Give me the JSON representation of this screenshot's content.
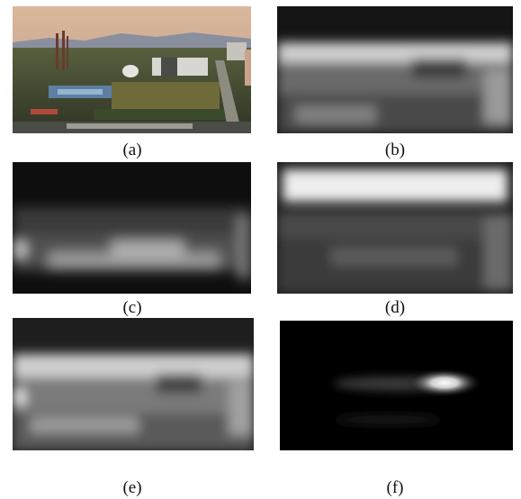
{
  "figure": {
    "panels": [
      {
        "label": "(a)",
        "content": "aerial-city-photo"
      },
      {
        "label": "(b)",
        "content": "saliency-map"
      },
      {
        "label": "(c)",
        "content": "saliency-map"
      },
      {
        "label": "(d)",
        "content": "saliency-map"
      },
      {
        "label": "(e)",
        "content": "saliency-map"
      },
      {
        "label": "(f)",
        "content": "saliency-map"
      }
    ]
  }
}
